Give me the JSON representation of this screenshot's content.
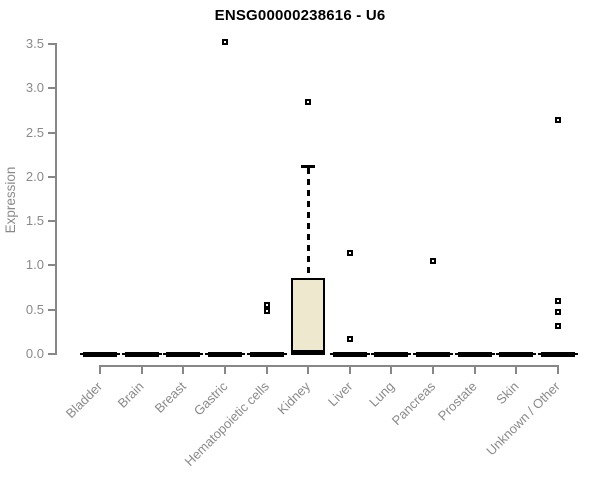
{
  "colors": {
    "title": "#000000",
    "axis": "#878787",
    "tick_label": "#8a8a8a",
    "box_fill": "#ede8ce",
    "box_border": "#000000",
    "median": "#000000",
    "whisker": "#000000",
    "outlier_border": "#000000",
    "background": "#ffffff"
  },
  "chart_data": {
    "type": "boxplot",
    "title": "ENSG00000238616 - U6",
    "ylabel": "Expression",
    "xlabel": "",
    "ylim": [
      0.0,
      3.5
    ],
    "ytick_labels": [
      "0.0",
      "0.5",
      "1.0",
      "1.5",
      "2.0",
      "2.5",
      "3.0",
      "3.5"
    ],
    "grid": false,
    "legend": "none",
    "categories": [
      "Bladder",
      "Brain",
      "Breast",
      "Gastric",
      "Hematopoietic cells",
      "Kidney",
      "Liver",
      "Lung",
      "Pancreas",
      "Prostate",
      "Skin",
      "Unknown / Other"
    ],
    "series": [
      {
        "category": "Bladder",
        "low": 0,
        "q1": 0,
        "median": 0,
        "q3": 0,
        "high": 0,
        "outliers": []
      },
      {
        "category": "Brain",
        "low": 0,
        "q1": 0,
        "median": 0,
        "q3": 0,
        "high": 0,
        "outliers": []
      },
      {
        "category": "Breast",
        "low": 0,
        "q1": 0,
        "median": 0,
        "q3": 0,
        "high": 0,
        "outliers": []
      },
      {
        "category": "Gastric",
        "low": 0,
        "q1": 0,
        "median": 0,
        "q3": 0,
        "high": 0,
        "outliers": [
          3.52
        ]
      },
      {
        "category": "Hematopoietic cells",
        "low": 0,
        "q1": 0,
        "median": 0,
        "q3": 0,
        "high": 0,
        "outliers": [
          0.55,
          0.49
        ]
      },
      {
        "category": "Kidney",
        "low": 0,
        "q1": 0,
        "median": 0.02,
        "q3": 0.86,
        "high": 2.12,
        "outliers": [
          2.84
        ]
      },
      {
        "category": "Liver",
        "low": 0,
        "q1": 0,
        "median": 0,
        "q3": 0,
        "high": 0,
        "outliers": [
          1.14,
          0.17
        ]
      },
      {
        "category": "Lung",
        "low": 0,
        "q1": 0,
        "median": 0,
        "q3": 0,
        "high": 0,
        "outliers": []
      },
      {
        "category": "Pancreas",
        "low": 0,
        "q1": 0,
        "median": 0,
        "q3": 0,
        "high": 0,
        "outliers": [
          1.05
        ]
      },
      {
        "category": "Prostate",
        "low": 0,
        "q1": 0,
        "median": 0,
        "q3": 0,
        "high": 0,
        "outliers": []
      },
      {
        "category": "Skin",
        "low": 0,
        "q1": 0,
        "median": 0,
        "q3": 0,
        "high": 0,
        "outliers": []
      },
      {
        "category": "Unknown / Other",
        "low": 0,
        "q1": 0,
        "median": 0,
        "q3": 0,
        "high": 0,
        "outliers": [
          2.64,
          0.6,
          0.47,
          0.32
        ]
      }
    ]
  }
}
